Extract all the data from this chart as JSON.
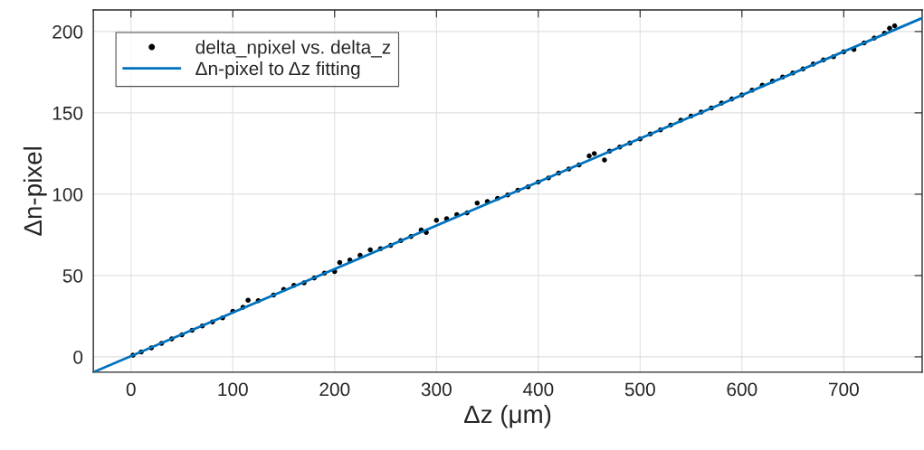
{
  "chart_data": {
    "type": "scatter",
    "xlabel": "Δz (μm)",
    "ylabel": "Δn-pixel",
    "xlim": [
      -37,
      777
    ],
    "ylim": [
      -9.4,
      213.3
    ],
    "xticks": [
      0,
      100,
      200,
      300,
      400,
      500,
      600,
      700
    ],
    "yticks": [
      0,
      50,
      100,
      150,
      200
    ],
    "grid": true,
    "legend": "top left",
    "series": [
      {
        "name": "delta_npixel vs. delta_z",
        "color": "#000000",
        "marker": "circle",
        "x": [
          2,
          10,
          20,
          30,
          40,
          50,
          60,
          70,
          80,
          90,
          100,
          110,
          115,
          125,
          140,
          150,
          160,
          170,
          180,
          190,
          200,
          205,
          215,
          225,
          235,
          245,
          255,
          265,
          275,
          285,
          290,
          300,
          310,
          320,
          330,
          340,
          350,
          360,
          370,
          380,
          390,
          400,
          410,
          420,
          430,
          440,
          450,
          455,
          465,
          470,
          480,
          490,
          500,
          510,
          520,
          530,
          540,
          550,
          560,
          570,
          580,
          590,
          600,
          610,
          620,
          630,
          640,
          650,
          660,
          670,
          680,
          690,
          700,
          710,
          720,
          730,
          740,
          745,
          750
        ],
        "values": [
          1.0,
          3.0,
          5.5,
          8.3,
          11.0,
          13.5,
          16.3,
          19.0,
          21.5,
          24.0,
          28.0,
          30.5,
          34.8,
          34.5,
          38.0,
          41.5,
          44.0,
          45.5,
          48.5,
          51.5,
          52.5,
          58.0,
          59.5,
          62.5,
          65.8,
          66.5,
          68.5,
          71.5,
          74.0,
          78.0,
          76.5,
          84.0,
          85.0,
          87.5,
          88.5,
          94.5,
          95.5,
          97.5,
          99.5,
          102.5,
          104.5,
          107.5,
          110.0,
          113.0,
          115.5,
          118.0,
          123.5,
          125.0,
          121.0,
          126.5,
          129.0,
          131.5,
          134.0,
          137.0,
          139.5,
          142.5,
          145.5,
          148.0,
          150.5,
          153.0,
          156.0,
          158.5,
          161.0,
          164.0,
          167.0,
          169.5,
          172.0,
          174.5,
          177.0,
          180.0,
          182.5,
          184.5,
          187.5,
          189.0,
          193.0,
          196.0,
          199.0,
          202.0,
          203.5
        ]
      },
      {
        "name": "Δn-pixel to Δz fitting",
        "type": "line",
        "color": "#0072bd",
        "marker": "none",
        "line_style": "solid",
        "x": [
          -37,
          777
        ],
        "values": [
          -9.4,
          208.3
        ]
      }
    ]
  }
}
